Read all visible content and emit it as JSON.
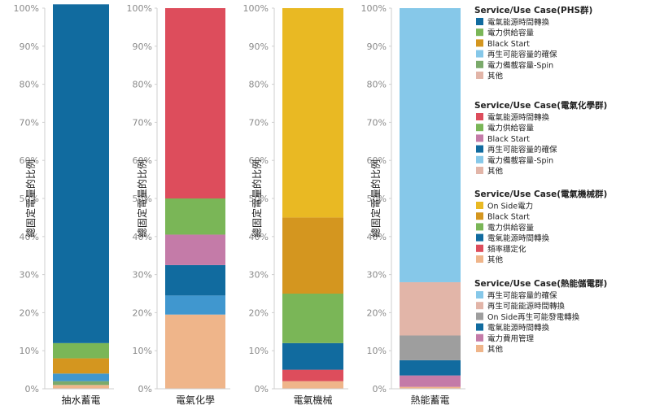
{
  "chart_data": [
    {
      "type": "bar",
      "stacked": true,
      "category": "抽水蓄電",
      "ylabel": "總固定電量的比例",
      "ylim": [
        0,
        100
      ],
      "yticks": [
        "0%",
        "10%",
        "20%",
        "30%",
        "40%",
        "50%",
        "60%",
        "70%",
        "80%",
        "90%",
        "100%"
      ],
      "segments": [
        {
          "name": "其他",
          "value": 1,
          "color": "#EFB58A"
        },
        {
          "name": "電力備載容量-Spin",
          "value": 1,
          "color": "#7BAA6B"
        },
        {
          "name": "再生可能容量的確保",
          "value": 2,
          "color": "#4097CF"
        },
        {
          "name": "Black Start",
          "value": 4,
          "color": "#D4961F"
        },
        {
          "name": "電力供給容量",
          "value": 4,
          "color": "#7AB657"
        },
        {
          "name": "電氣能源時間轉換",
          "value": 89,
          "color": "#116B9F"
        }
      ]
    },
    {
      "type": "bar",
      "stacked": true,
      "category": "電氣化學",
      "ylabel": "總固定電量的比例",
      "ylim": [
        0,
        100
      ],
      "yticks": [
        "0%",
        "10%",
        "20%",
        "30%",
        "40%",
        "50%",
        "60%",
        "70%",
        "80%",
        "90%",
        "100%"
      ],
      "segments": [
        {
          "name": "其他",
          "value": 19.5,
          "color": "#EFB58A"
        },
        {
          "name": "電力備載容量-Spin",
          "value": 5,
          "color": "#4097CF"
        },
        {
          "name": "再生可能容量的確保",
          "value": 8,
          "color": "#116B9F"
        },
        {
          "name": "Black Start",
          "value": 8,
          "color": "#C47BA8"
        },
        {
          "name": "電力供給容量",
          "value": 9.5,
          "color": "#7AB657"
        },
        {
          "name": "電氣能源時間轉換",
          "value": 50,
          "color": "#DD4D5C"
        }
      ]
    },
    {
      "type": "bar",
      "stacked": true,
      "category": "電氣機械",
      "ylabel": "總固定電量的比例",
      "ylim": [
        0,
        100
      ],
      "yticks": [
        "0%",
        "10%",
        "20%",
        "30%",
        "40%",
        "50%",
        "60%",
        "70%",
        "80%",
        "90%",
        "100%"
      ],
      "segments": [
        {
          "name": "其他",
          "value": 2,
          "color": "#EFB58A"
        },
        {
          "name": "頻率穩定化",
          "value": 3,
          "color": "#DD4D5C"
        },
        {
          "name": "電氣能源時間轉換",
          "value": 7,
          "color": "#116B9F"
        },
        {
          "name": "電力供給容量",
          "value": 13,
          "color": "#7AB657"
        },
        {
          "name": "Black Start",
          "value": 20,
          "color": "#D4961F"
        },
        {
          "name": "On Side電力",
          "value": 55,
          "color": "#E9B923"
        }
      ]
    },
    {
      "type": "bar",
      "stacked": true,
      "category": "熱能蓄電",
      "ylabel": "總固定電量的比例",
      "ylim": [
        0,
        100
      ],
      "yticks": [
        "0%",
        "10%",
        "20%",
        "30%",
        "40%",
        "50%",
        "60%",
        "70%",
        "80%",
        "90%",
        "100%"
      ],
      "segments": [
        {
          "name": "其他",
          "value": 0.5,
          "color": "#EFB58A"
        },
        {
          "name": "電力費用管理",
          "value": 3,
          "color": "#C47BA8"
        },
        {
          "name": "電氣能源時間轉換",
          "value": 4,
          "color": "#116B9F"
        },
        {
          "name": "On Side再生可能發電轉換",
          "value": 6.5,
          "color": "#9E9E9E"
        },
        {
          "name": "再生可能能源時間轉換",
          "value": 14,
          "color": "#E2B5A8"
        },
        {
          "name": "再生可能容量的確保",
          "value": 72,
          "color": "#86C8E9"
        }
      ]
    }
  ],
  "legend": [
    {
      "title": "Service/Use Case(PHS群)",
      "items": [
        {
          "label": "電氣能源時間轉換",
          "color": "#116B9F"
        },
        {
          "label": "電力供給容量",
          "color": "#7AB657"
        },
        {
          "label": "Black Start",
          "color": "#D4961F"
        },
        {
          "label": "再生可能容量的確保",
          "color": "#86C8E9"
        },
        {
          "label": "電力備載容量-Spin",
          "color": "#7BAA6B"
        },
        {
          "label": "其他",
          "color": "#E2B5A8"
        }
      ]
    },
    {
      "title": "Service/Use Case(電氣化學群)",
      "items": [
        {
          "label": "電氣能源時間轉換",
          "color": "#DD4D5C"
        },
        {
          "label": "電力供給容量",
          "color": "#7AB657"
        },
        {
          "label": "Black Start",
          "color": "#C47BA8"
        },
        {
          "label": "再生可能容量的確保",
          "color": "#116B9F"
        },
        {
          "label": "電力備載容量-Spin",
          "color": "#86C8E9"
        },
        {
          "label": "其他",
          "color": "#E2B5A8"
        }
      ]
    },
    {
      "title": "Service/Use Case(電氣機械群)",
      "items": [
        {
          "label": "On Side電力",
          "color": "#E9B923"
        },
        {
          "label": "Black Start",
          "color": "#D4961F"
        },
        {
          "label": "電力供給容量",
          "color": "#7AB657"
        },
        {
          "label": "電氣能源時間轉換",
          "color": "#116B9F"
        },
        {
          "label": "頻率穩定化",
          "color": "#DD4D5C"
        },
        {
          "label": "其他",
          "color": "#EFB58A"
        }
      ]
    },
    {
      "title": "Service/Use Case(熱能儲電群)",
      "items": [
        {
          "label": "再生可能容量的確保",
          "color": "#86C8E9"
        },
        {
          "label": "再生可能能源時間轉換",
          "color": "#E2B5A8"
        },
        {
          "label": "On Side再生可能發電轉換",
          "color": "#9E9E9E"
        },
        {
          "label": "電氣能源時間轉換",
          "color": "#116B9F"
        },
        {
          "label": "電力費用管理",
          "color": "#C47BA8"
        },
        {
          "label": "其他",
          "color": "#EFB58A"
        }
      ]
    }
  ]
}
